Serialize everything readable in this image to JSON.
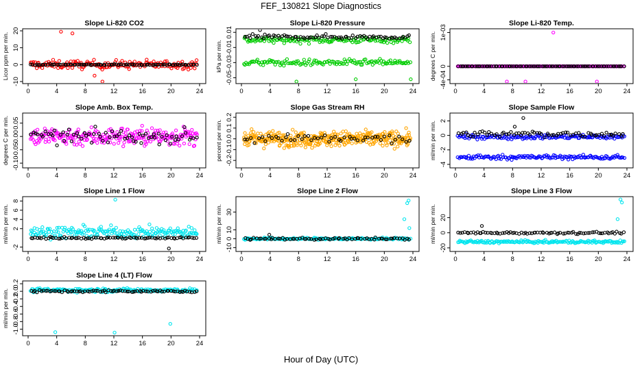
{
  "page": {
    "title": "FEF_130821  Slope Diagnostics",
    "xlabel": "Hour of Day (UTC)"
  },
  "chart_data": [
    {
      "type": "scatter",
      "title": "Slope Li-820 CO2",
      "ylabel": "Licor ppm per min.",
      "xlim": [
        0,
        24
      ],
      "xticks": [
        0,
        4,
        8,
        12,
        16,
        20,
        24
      ],
      "ylim": [
        -10,
        20
      ],
      "yticks": [
        -10,
        0,
        10,
        20
      ],
      "ytick_labels": [
        "-10",
        "0",
        "10",
        "20"
      ],
      "series": [
        {
          "color": "#ff0000",
          "clusters": [
            {
              "mean": 0,
              "spread": 2.5,
              "count": 170,
              "outliers": [
                [
                  4.6,
                  19.5
                ],
                [
                  6.2,
                  18.5
                ],
                [
                  10.4,
                  -10
                ],
                [
                  9.3,
                  -6.5
                ]
              ]
            }
          ]
        },
        {
          "color": "#000000",
          "clusters": [
            {
              "mean": 0,
              "spread": 0.3,
              "count": 90
            }
          ]
        }
      ]
    },
    {
      "type": "scatter",
      "title": "Slope Li-820 Pressure",
      "ylabel": "kPa per min.",
      "xlim": [
        0,
        24
      ],
      "xticks": [
        0,
        4,
        8,
        12,
        16,
        20,
        24
      ],
      "ylim": [
        -0.055,
        0.012
      ],
      "yticks": [
        -0.05,
        -0.03,
        -0.01,
        0.01
      ],
      "ytick_labels": [
        "-0.05",
        "-0.03",
        "-0.01",
        "0.01"
      ],
      "series": [
        {
          "color": "#00cc00",
          "clusters": [
            {
              "mean": 0.0,
              "spread": 0.004,
              "count": 140
            },
            {
              "mean": -0.03,
              "spread": 0.004,
              "count": 140,
              "outliers": [
                [
                  7.7,
                  -0.055
                ],
                [
                  16.0,
                  -0.052
                ],
                [
                  23.7,
                  -0.052
                ]
              ]
            }
          ]
        },
        {
          "color": "#000000",
          "clusters": [
            {
              "mean": 0.004,
              "spread": 0.003,
              "count": 80,
              "outliers": [
                [
                  2.6,
                  0.013
                ]
              ]
            }
          ]
        }
      ]
    },
    {
      "type": "scatter",
      "title": "Slope Li-820 Temp.",
      "ylabel": "degrees C per min.",
      "xlim": [
        0,
        24
      ],
      "xticks": [
        0,
        4,
        8,
        12,
        16,
        20,
        24
      ],
      "ylim": [
        -0.00045,
        0.00105
      ],
      "yticks": [
        -0.0004,
        0,
        0.001
      ],
      "ytick_labels": [
        "-4e-04",
        "0",
        "1e-03"
      ],
      "series": [
        {
          "color": "#ff00ff",
          "clusters": [
            {
              "mean": 0,
              "spread": 0,
              "count": 170,
              "outliers": [
                [
                  13.7,
                  0.001
                ],
                [
                  7.2,
                  -0.00045
                ],
                [
                  9.8,
                  -0.00045
                ],
                [
                  19.8,
                  -0.00045
                ]
              ]
            }
          ]
        },
        {
          "color": "#000000",
          "clusters": [
            {
              "mean": 0,
              "spread": 0,
              "count": 90
            }
          ]
        }
      ]
    },
    {
      "type": "scatter",
      "title": "Slope Amb. Box Temp.",
      "ylabel": "degrees C per min.",
      "xlim": [
        0,
        24
      ],
      "xticks": [
        0,
        4,
        8,
        12,
        16,
        20,
        24
      ],
      "ylim": [
        -0.11,
        0.08
      ],
      "yticks": [
        -0.1,
        -0.05,
        0,
        0.05
      ],
      "ytick_labels": [
        "-0.10",
        "-0.05",
        "0.00",
        "0.05"
      ],
      "series": [
        {
          "color": "#ff00ff",
          "clusters": [
            {
              "mean": 0,
              "spread": 0.035,
              "count": 260
            }
          ]
        },
        {
          "color": "#000000",
          "clusters": [
            {
              "mean": 0,
              "spread": 0.025,
              "count": 70
            }
          ]
        }
      ]
    },
    {
      "type": "scatter",
      "title": "Slope Gas Stream RH",
      "ylabel": "percent per min.",
      "xlim": [
        0,
        24
      ],
      "xticks": [
        0,
        4,
        8,
        12,
        16,
        20,
        24
      ],
      "ylim": [
        -0.25,
        0.22
      ],
      "yticks": [
        -0.2,
        -0.1,
        0,
        0.1,
        0.2
      ],
      "ytick_labels": [
        "-0.2",
        "-0.1",
        "0.0",
        "0.1",
        "0.2"
      ],
      "series": [
        {
          "color": "#ffa500",
          "clusters": [
            {
              "mean": 0,
              "spread": 0.07,
              "count": 380
            }
          ]
        },
        {
          "color": "#000000",
          "clusters": [
            {
              "mean": 0,
              "spread": 0.04,
              "count": 50
            }
          ]
        }
      ]
    },
    {
      "type": "scatter",
      "title": "Slope Sample Flow",
      "ylabel": "ml/min per min.",
      "xlim": [
        0,
        24
      ],
      "xticks": [
        0,
        4,
        8,
        12,
        16,
        20,
        24
      ],
      "ylim": [
        -4.2,
        2.8
      ],
      "yticks": [
        -4,
        -2,
        0,
        2
      ],
      "ytick_labels": [
        "-4",
        "-2",
        "0",
        "2"
      ],
      "series": [
        {
          "color": "#0000ff",
          "clusters": [
            {
              "mean": -0.2,
              "spread": 0.3,
              "count": 150
            },
            {
              "mean": -3.0,
              "spread": 0.3,
              "count": 150
            }
          ]
        },
        {
          "color": "#000000",
          "clusters": [
            {
              "mean": 0.2,
              "spread": 0.4,
              "count": 70,
              "outliers": [
                [
                  9.5,
                  2.4
                ],
                [
                  8.3,
                  1.2
                ]
              ]
            }
          ]
        }
      ]
    },
    {
      "type": "scatter",
      "title": "Slope Line 1 Flow",
      "ylabel": "ml/min per min.",
      "xlim": [
        0,
        24
      ],
      "xticks": [
        0,
        4,
        8,
        12,
        16,
        20,
        24
      ],
      "ylim": [
        -2.5,
        8.5
      ],
      "yticks": [
        -2,
        2,
        4,
        6,
        8
      ],
      "ytick_labels": [
        "-2",
        "2",
        "4",
        "6",
        "8"
      ],
      "series": [
        {
          "color": "#00e5ee",
          "clusters": [
            {
              "mean": 1.2,
              "spread": 1.2,
              "count": 200,
              "outliers": [
                [
                  12.2,
                  8.3
                ]
              ]
            }
          ]
        },
        {
          "color": "#000000",
          "clusters": [
            {
              "mean": 0,
              "spread": 0.2,
              "count": 80,
              "outliers": [
                [
                  19.7,
                  -2.3
                ]
              ]
            }
          ]
        }
      ]
    },
    {
      "type": "scatter",
      "title": "Slope Line 2 Flow",
      "ylabel": "ml/min per min.",
      "xlim": [
        0,
        24
      ],
      "xticks": [
        0,
        4,
        8,
        12,
        16,
        20,
        24
      ],
      "ylim": [
        -12,
        45
      ],
      "yticks": [
        -10,
        0,
        10,
        30
      ],
      "ytick_labels": [
        "-10",
        "0",
        "10",
        "30"
      ],
      "series": [
        {
          "color": "#00e5ee",
          "clusters": [
            {
              "mean": 0,
              "spread": 1.2,
              "count": 170,
              "outliers": [
                [
                  23.2,
                  40
                ],
                [
                  23.4,
                  43
                ],
                [
                  23.5,
                  12
                ],
                [
                  22.8,
                  22
                ]
              ]
            }
          ]
        },
        {
          "color": "#000000",
          "clusters": [
            {
              "mean": 0,
              "spread": 1.2,
              "count": 70,
              "outliers": [
                [
                  3.9,
                  4.5
                ]
              ]
            }
          ]
        }
      ]
    },
    {
      "type": "scatter",
      "title": "Slope Line 3 Flow",
      "ylabel": "ml/min per min.",
      "xlim": [
        0,
        24
      ],
      "xticks": [
        0,
        4,
        8,
        12,
        16,
        20,
        24
      ],
      "ylim": [
        -22,
        45
      ],
      "yticks": [
        -20,
        0,
        20
      ],
      "ytick_labels": [
        "-20",
        "0",
        "20"
      ],
      "series": [
        {
          "color": "#00e5ee",
          "clusters": [
            {
              "mean": -12,
              "spread": 1.8,
              "count": 170,
              "outliers": [
                [
                  23.1,
                  44
                ],
                [
                  23.3,
                  40
                ],
                [
                  22.7,
                  18
                ]
              ]
            }
          ]
        },
        {
          "color": "#000000",
          "clusters": [
            {
              "mean": 0,
              "spread": 1.5,
              "count": 80,
              "outliers": [
                [
                  3.7,
                  9
                ]
              ]
            }
          ]
        }
      ]
    },
    {
      "type": "scatter",
      "title": "Slope Line 4 (LT) Flow",
      "ylabel": "ml/min per min.",
      "xlim": [
        0,
        24
      ],
      "xticks": [
        0,
        4,
        8,
        12,
        16,
        20,
        24
      ],
      "ylim": [
        -1.12,
        0.22
      ],
      "yticks": [
        -1.0,
        -0.8,
        -0.6,
        -0.4,
        -0.2,
        0,
        0.2
      ],
      "ytick_labels": [
        "-1.0",
        "-0.8",
        "-0.6",
        "-0.4",
        "-0.2",
        "0.0",
        "0.2"
      ],
      "series": [
        {
          "color": "#00e5ee",
          "clusters": [
            {
              "mean": 0.03,
              "spread": 0.05,
              "count": 170,
              "outliers": [
                [
                  3.8,
                  -1.08
                ],
                [
                  12.1,
                  -1.09
                ],
                [
                  19.9,
                  -0.86
                ]
              ]
            }
          ]
        },
        {
          "color": "#000000",
          "clusters": [
            {
              "mean": 0,
              "spread": 0.03,
              "count": 80
            }
          ]
        }
      ]
    }
  ]
}
